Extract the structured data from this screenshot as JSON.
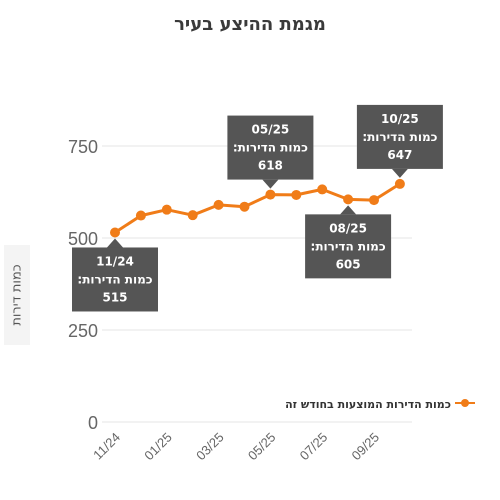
{
  "chart_data": {
    "type": "line",
    "title": "מגמת ההיצע בעיר",
    "ylabel": "כמות דירות",
    "xlabel": "",
    "x": [
      "11/24",
      "12/24",
      "01/25",
      "02/25",
      "03/25",
      "04/25",
      "05/25",
      "06/25",
      "07/25",
      "08/25",
      "09/25",
      "10/25"
    ],
    "tick_labels": [
      "11/24",
      "01/25",
      "03/25",
      "05/25",
      "07/25",
      "09/25"
    ],
    "ylim": [
      0,
      850
    ],
    "yticks": [
      0,
      250,
      500,
      750
    ],
    "grid": true,
    "legend": "right",
    "series": [
      {
        "name": "כמות הדירות המוצעות בחודש זה",
        "color": "#f07c18",
        "values": [
          515,
          561,
          577,
          562,
          590,
          585,
          618,
          617,
          632,
          605,
          603,
          647
        ]
      }
    ],
    "annotations": [
      {
        "index": 0,
        "date": "11/24",
        "label": "כמות הדירות:",
        "value": "515",
        "side": "below"
      },
      {
        "index": 6,
        "date": "05/25",
        "label": "כמות הדירות:",
        "value": "618",
        "side": "above"
      },
      {
        "index": 9,
        "date": "08/25",
        "label": "כמות הדירות:",
        "value": "605",
        "side": "below"
      },
      {
        "index": 11,
        "date": "10/25",
        "label": "כמות הדירות:",
        "value": "647",
        "side": "above"
      }
    ]
  }
}
